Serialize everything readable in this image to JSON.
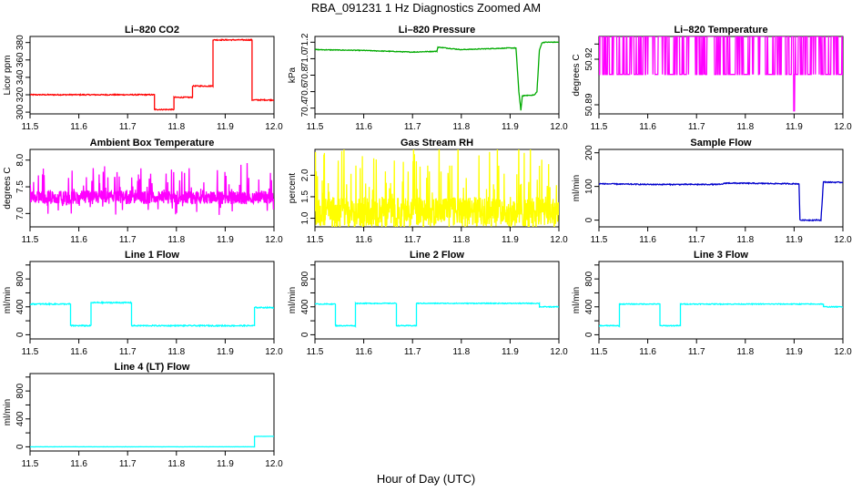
{
  "figure": {
    "title": "RBA_091231  1 Hz Diagnostics Zoomed AM",
    "xlabel": "Hour of Day (UTC)"
  },
  "chart_data": [
    {
      "type": "line",
      "title": "Li–820 CO2",
      "ylabel": "Licor ppm",
      "color": "#ff0000",
      "xlim": [
        11.5,
        12.0
      ],
      "ylim": [
        298,
        387
      ],
      "xticks": [
        "11.5",
        "11.6",
        "11.7",
        "11.8",
        "11.9",
        "12.0"
      ],
      "yticks": [
        300,
        320,
        340,
        360,
        380
      ],
      "noise": 0.6,
      "x": [
        11.5,
        11.755,
        11.755,
        11.795,
        11.795,
        11.833,
        11.833,
        11.875,
        11.875,
        11.955,
        11.955,
        12.0
      ],
      "y": [
        320,
        320,
        303,
        303,
        317,
        317,
        330,
        330,
        383,
        383,
        314,
        314
      ]
    },
    {
      "type": "line",
      "title": "Li–820 Pressure",
      "ylabel": "kPa",
      "color": "#00aa00",
      "xlim": [
        11.5,
        12.0
      ],
      "ylim": [
        70.33,
        71.27
      ],
      "xticks": [
        "11.5",
        "11.6",
        "11.7",
        "11.8",
        "11.9",
        "12.0"
      ],
      "yticks": [
        "70.4",
        "70.6",
        "70.8",
        "71.0",
        "71.2"
      ],
      "noise": 0.004,
      "x": [
        11.5,
        11.6,
        11.7,
        11.75,
        11.752,
        11.8,
        11.9,
        11.912,
        11.918,
        11.922,
        11.925,
        11.95,
        11.955,
        11.96,
        11.965,
        11.97,
        12.0
      ],
      "y": [
        71.11,
        71.1,
        71.08,
        71.09,
        71.14,
        71.11,
        71.13,
        71.13,
        70.6,
        70.37,
        70.55,
        70.56,
        70.6,
        71.1,
        71.19,
        71.2,
        71.2
      ]
    },
    {
      "type": "line",
      "title": "Li–820 Temperature",
      "ylabel": "degrees C",
      "color": "#ff00ff",
      "xlim": [
        11.5,
        12.0
      ],
      "ylim": [
        50.884,
        50.935
      ],
      "xticks": [
        "11.5",
        "11.6",
        "11.7",
        "11.8",
        "11.9",
        "12.0"
      ],
      "yticks": [
        "50.89",
        "50.92"
      ],
      "ytick_values": [
        50.89,
        50.92
      ],
      "extra_yticks": [
        50.93
      ],
      "base": 50.935,
      "alt": 50.91,
      "dip_x": 11.9,
      "dip_y": 50.886
    },
    {
      "type": "line",
      "title": "Ambient Box Temperature",
      "ylabel": "degrees C",
      "color": "#ff00ff",
      "xlim": [
        11.5,
        12.0
      ],
      "ylim": [
        6.75,
        8.2
      ],
      "xticks": [
        "11.5",
        "11.6",
        "11.7",
        "11.8",
        "11.9",
        "12.0"
      ],
      "yticks": [
        "7.0",
        "7.5",
        "8.0"
      ],
      "ytick_values": [
        7.0,
        7.5,
        8.0
      ],
      "mean": 7.3,
      "spread": 0.25
    },
    {
      "type": "line",
      "title": "Gas Stream RH",
      "ylabel": "percent",
      "color": "#ffff00",
      "xlim": [
        11.5,
        12.0
      ],
      "ylim": [
        0.8,
        2.6
      ],
      "xticks": [
        "11.5",
        "11.6",
        "11.7",
        "11.8",
        "11.9",
        "12.0"
      ],
      "yticks": [
        "1.0",
        "1.5",
        "2.0"
      ],
      "ytick_values": [
        1.0,
        1.5,
        2.0
      ],
      "mean": 1.15,
      "spread": 0.7
    },
    {
      "type": "line",
      "title": "Sample Flow",
      "ylabel": "ml/min",
      "color": "#0000cc",
      "xlim": [
        11.5,
        12.0
      ],
      "ylim": [
        -20,
        210
      ],
      "xticks": [
        "11.5",
        "11.6",
        "11.7",
        "11.8",
        "11.9",
        "12.0"
      ],
      "yticks": [
        0,
        100,
        200
      ],
      "noise": 1.5,
      "x": [
        11.5,
        11.6,
        11.75,
        11.76,
        11.9,
        11.91,
        11.912,
        11.95,
        11.955,
        11.96,
        12.0
      ],
      "y": [
        108,
        106,
        106,
        110,
        108,
        108,
        0,
        0,
        0,
        113,
        112
      ]
    },
    {
      "type": "line",
      "title": "Line 1 Flow",
      "ylabel": "ml/min",
      "color": "#00ffff",
      "xlim": [
        11.5,
        12.0
      ],
      "ylim": [
        -60,
        1050
      ],
      "xticks": [
        "11.5",
        "11.6",
        "11.7",
        "11.8",
        "11.9",
        "12.0"
      ],
      "yticks": [
        0,
        400,
        800
      ],
      "extra_yticks": [
        200,
        600,
        1000
      ],
      "noise": 8,
      "x": [
        11.5,
        11.583,
        11.583,
        11.625,
        11.625,
        11.708,
        11.708,
        11.96,
        11.96,
        12.0
      ],
      "y": [
        440,
        440,
        130,
        130,
        460,
        460,
        130,
        130,
        390,
        390
      ]
    },
    {
      "type": "line",
      "title": "Line 2 Flow",
      "ylabel": "ml/min",
      "color": "#00ffff",
      "xlim": [
        11.5,
        12.0
      ],
      "ylim": [
        -60,
        1050
      ],
      "xticks": [
        "11.5",
        "11.6",
        "11.7",
        "11.8",
        "11.9",
        "12.0"
      ],
      "yticks": [
        0,
        400,
        800
      ],
      "extra_yticks": [
        200,
        600,
        1000
      ],
      "noise": 6,
      "x": [
        11.5,
        11.542,
        11.542,
        11.583,
        11.583,
        11.667,
        11.667,
        11.708,
        11.708,
        11.96,
        11.96,
        12.0
      ],
      "y": [
        440,
        440,
        130,
        130,
        450,
        450,
        130,
        130,
        450,
        450,
        400,
        400
      ]
    },
    {
      "type": "line",
      "title": "Line 3 Flow",
      "ylabel": "ml/min",
      "color": "#00ffff",
      "xlim": [
        11.5,
        12.0
      ],
      "ylim": [
        -60,
        1050
      ],
      "xticks": [
        "11.5",
        "11.6",
        "11.7",
        "11.8",
        "11.9",
        "12.0"
      ],
      "yticks": [
        0,
        400,
        800
      ],
      "extra_yticks": [
        200,
        600,
        1000
      ],
      "noise": 6,
      "x": [
        11.5,
        11.542,
        11.542,
        11.625,
        11.625,
        11.667,
        11.667,
        11.96,
        11.96,
        12.0
      ],
      "y": [
        130,
        130,
        440,
        440,
        130,
        130,
        440,
        440,
        400,
        400
      ]
    },
    {
      "type": "line",
      "title": "Line 4 (LT) Flow",
      "ylabel": "ml/min",
      "color": "#00ffff",
      "xlim": [
        11.5,
        12.0
      ],
      "ylim": [
        -60,
        1050
      ],
      "xticks": [
        "11.5",
        "11.6",
        "11.7",
        "11.8",
        "11.9",
        "12.0"
      ],
      "yticks": [
        0,
        400,
        800
      ],
      "extra_yticks": [
        200,
        600,
        1000
      ],
      "noise": 1,
      "x": [
        11.5,
        11.96,
        11.96,
        12.0
      ],
      "y": [
        0,
        0,
        150,
        150
      ]
    }
  ]
}
